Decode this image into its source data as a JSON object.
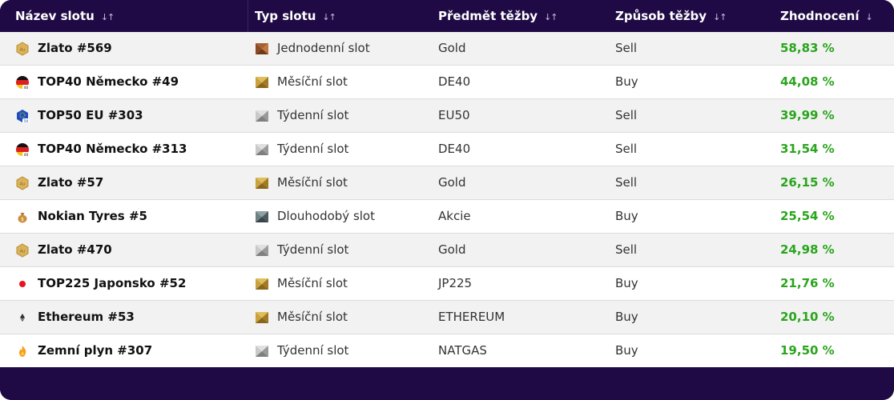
{
  "headers": {
    "name": "Název slotu",
    "type": "Typ slotu",
    "subject": "Předmět těžby",
    "method": "Způsob těžby",
    "value": "Zhodnocení",
    "sort_both": "↓↑",
    "sort_down": "↓"
  },
  "colors": {
    "header_bg": "#1f0a45",
    "positive": "#2aa51d",
    "row_alt": "#f2f2f2"
  },
  "rows": [
    {
      "icon": "gold-coin-icon",
      "name": "Zlato #569",
      "type_icon": "bronze-slot-icon",
      "type": "Jednodenní slot",
      "subject": "Gold",
      "method": "Sell",
      "value": "58,83 %"
    },
    {
      "icon": "germany-flag-icon",
      "name": "TOP40 Německo #49",
      "type_icon": "gold-slot-icon",
      "type": "Měsíční slot",
      "subject": "DE40",
      "method": "Buy",
      "value": "44,08 %"
    },
    {
      "icon": "eu-flag-icon",
      "name": "TOP50 EU #303",
      "type_icon": "silver-slot-icon",
      "type": "Týdenní slot",
      "subject": "EU50",
      "method": "Sell",
      "value": "39,99 %"
    },
    {
      "icon": "germany-flag-icon",
      "name": "TOP40 Německo #313",
      "type_icon": "silver-slot-icon",
      "type": "Týdenní slot",
      "subject": "DE40",
      "method": "Sell",
      "value": "31,54 %"
    },
    {
      "icon": "gold-coin-icon",
      "name": "Zlato #57",
      "type_icon": "gold-slot-icon",
      "type": "Měsíční slot",
      "subject": "Gold",
      "method": "Sell",
      "value": "26,15 %"
    },
    {
      "icon": "money-bag-icon",
      "name": "Nokian Tyres #5",
      "type_icon": "platinum-slot-icon",
      "type": "Dlouhodobý slot",
      "subject": "Akcie",
      "method": "Buy",
      "value": "25,54 %"
    },
    {
      "icon": "gold-coin-icon",
      "name": "Zlato #470",
      "type_icon": "silver-slot-icon",
      "type": "Týdenní slot",
      "subject": "Gold",
      "method": "Sell",
      "value": "24,98 %"
    },
    {
      "icon": "japan-flag-icon",
      "name": "TOP225 Japonsko #52",
      "type_icon": "gold-slot-icon",
      "type": "Měsíční slot",
      "subject": "JP225",
      "method": "Buy",
      "value": "21,76 %"
    },
    {
      "icon": "ethereum-icon",
      "name": "Ethereum #53",
      "type_icon": "gold-slot-icon",
      "type": "Měsíční slot",
      "subject": "ETHEREUM",
      "method": "Buy",
      "value": "20,10 %"
    },
    {
      "icon": "flame-icon",
      "name": "Zemní plyn #307",
      "type_icon": "silver-slot-icon",
      "type": "Týdenní slot",
      "subject": "NATGAS",
      "method": "Buy",
      "value": "19,50 %"
    }
  ]
}
